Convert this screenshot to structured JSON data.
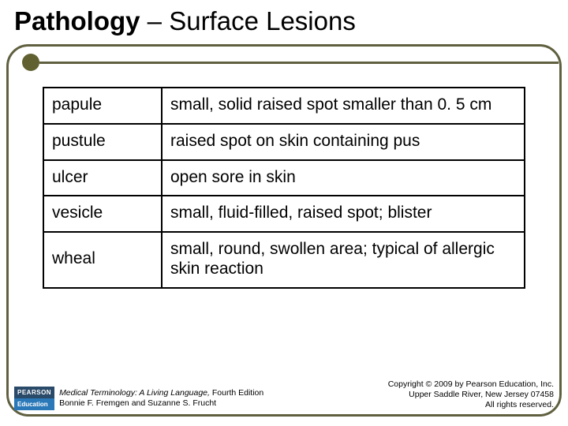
{
  "title_bold": "Pathology",
  "title_rest": " – Surface Lesions",
  "table": {
    "rows": [
      {
        "term": "papule",
        "def": "small, solid raised spot smaller than 0. 5 cm"
      },
      {
        "term": "pustule",
        "def": "raised spot on skin containing pus"
      },
      {
        "term": "ulcer",
        "def": "open sore in skin"
      },
      {
        "term": "vesicle",
        "def": "small, fluid-filled, raised spot; blister"
      },
      {
        "term": "wheal",
        "def": "small, round, swollen area; typical of allergic skin reaction"
      }
    ]
  },
  "logo": {
    "top": "PEARSON",
    "bot": "Education"
  },
  "book": {
    "title": "Medical Terminology: A Living Language,",
    "edition": " Fourth Edition",
    "authors": "Bonnie F. Fremgen and Suzanne S. Frucht"
  },
  "copyright": {
    "l1": "Copyright © 2009 by Pearson Education, Inc.",
    "l2": "Upper Saddle River, New Jersey 07458",
    "l3": "All rights reserved."
  },
  "colors": {
    "border": "#606040",
    "bullet": "#606030",
    "table_border": "#000000",
    "logo_top_bg": "#2a4a6a",
    "logo_bot_bg": "#2a78b8"
  }
}
